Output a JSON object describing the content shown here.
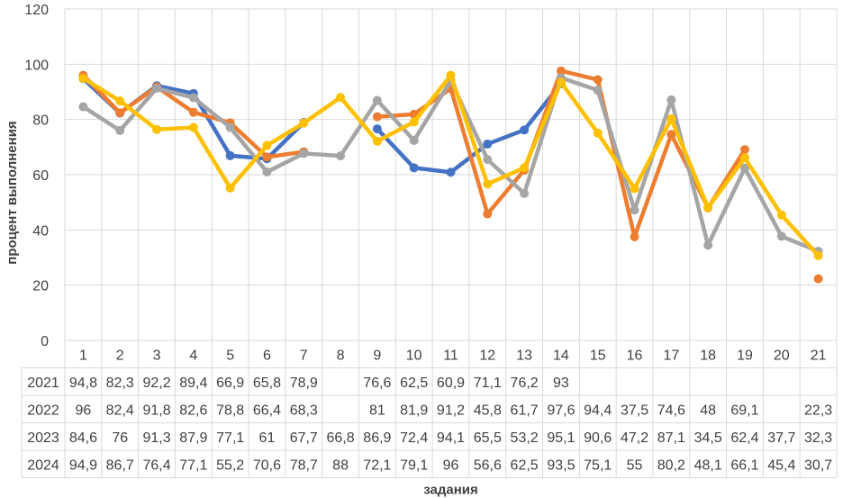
{
  "chart_data": {
    "type": "line",
    "title": "",
    "xlabel": "задания",
    "ylabel": "процент выполнения",
    "ylim": [
      0,
      120
    ],
    "yticks": [
      0,
      20,
      40,
      60,
      80,
      100,
      120
    ],
    "grid": true,
    "legend": "data-table",
    "categories": [
      "1",
      "2",
      "3",
      "4",
      "5",
      "6",
      "7",
      "8",
      "9",
      "10",
      "11",
      "12",
      "13",
      "14",
      "15",
      "16",
      "17",
      "18",
      "19",
      "20",
      "21"
    ],
    "series": [
      {
        "name": "2021",
        "color": "#4472C4",
        "values": [
          94.8,
          82.3,
          92.2,
          89.4,
          66.9,
          65.8,
          78.9,
          null,
          76.6,
          62.5,
          60.9,
          71.1,
          76.2,
          93,
          null,
          null,
          null,
          null,
          null,
          null,
          null
        ],
        "labels": [
          "94,8",
          "82,3",
          "92,2",
          "89,4",
          "66,9",
          "65,8",
          "78,9",
          "",
          "76,6",
          "62,5",
          "60,9",
          "71,1",
          "76,2",
          "93",
          "",
          "",
          "",
          "",
          "",
          "",
          ""
        ]
      },
      {
        "name": "2022",
        "color": "#ED7D31",
        "values": [
          96,
          82.4,
          91.8,
          82.6,
          78.8,
          66.4,
          68.3,
          null,
          81,
          81.9,
          91.2,
          45.8,
          61.7,
          97.6,
          94.4,
          37.5,
          74.6,
          48,
          69.1,
          null,
          22.3
        ],
        "labels": [
          "96",
          "82,4",
          "91,8",
          "82,6",
          "78,8",
          "66,4",
          "68,3",
          "",
          "81",
          "81,9",
          "91,2",
          "45,8",
          "61,7",
          "97,6",
          "94,4",
          "37,5",
          "74,6",
          "48",
          "69,1",
          "",
          "22,3"
        ]
      },
      {
        "name": "2023",
        "color": "#A5A5A5",
        "values": [
          84.6,
          76,
          91.3,
          87.9,
          77.1,
          61,
          67.7,
          66.8,
          86.9,
          72.4,
          94.1,
          65.5,
          53.2,
          95.1,
          90.6,
          47.2,
          87.1,
          34.5,
          62.4,
          37.7,
          32.3
        ],
        "labels": [
          "84,6",
          "76",
          "91,3",
          "87,9",
          "77,1",
          "61",
          "67,7",
          "66,8",
          "86,9",
          "72,4",
          "94,1",
          "65,5",
          "53,2",
          "95,1",
          "90,6",
          "47,2",
          "87,1",
          "34,5",
          "62,4",
          "37,7",
          "32,3"
        ]
      },
      {
        "name": "2024",
        "color": "#FFC000",
        "values": [
          94.9,
          86.7,
          76.4,
          77.1,
          55.2,
          70.6,
          78.7,
          88,
          72.1,
          79.1,
          96,
          56.6,
          62.5,
          93.5,
          75.1,
          55,
          80.2,
          48.1,
          66.1,
          45.4,
          30.7
        ],
        "labels": [
          "94,9",
          "86,7",
          "76,4",
          "77,1",
          "55,2",
          "70,6",
          "78,7",
          "88",
          "72,1",
          "79,1",
          "96",
          "56,6",
          "62,5",
          "93,5",
          "75,1",
          "55",
          "80,2",
          "48,1",
          "66,1",
          "45,4",
          "30,7"
        ]
      }
    ]
  }
}
